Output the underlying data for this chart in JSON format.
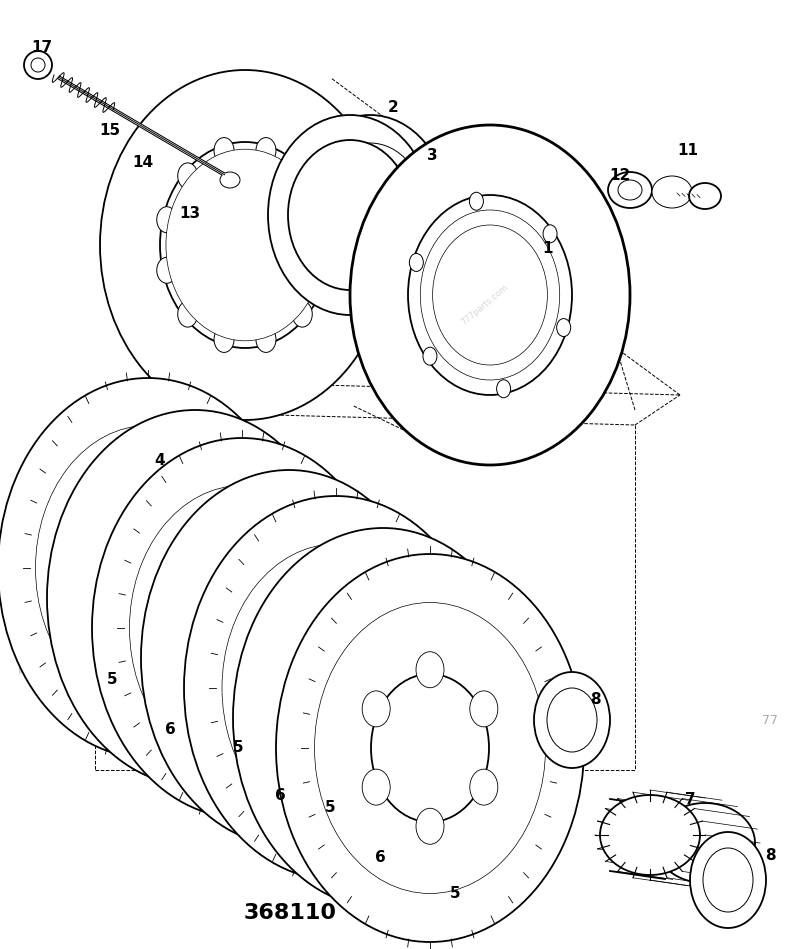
{
  "part_number": "368110",
  "background_color": "#ffffff",
  "line_color": "#000000",
  "watermark": "777parts.com",
  "side_text": "777parts.com",
  "corner_text": "77"
}
